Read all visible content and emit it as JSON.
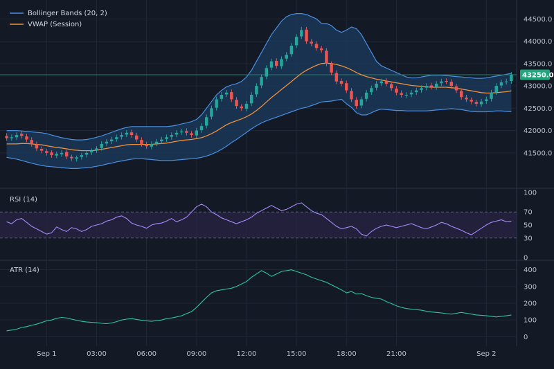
{
  "colors": {
    "background": "#131a26",
    "grid": "#1f2836",
    "separator": "#2c3646",
    "bull": "#26a69a",
    "bear": "#ef5350",
    "bollinger_line": "#4a90e2",
    "bollinger_fill": "#1b3b5e",
    "vwap": "#f0913a",
    "rsi": "#a78bfa",
    "rsi_band": "#2a2445",
    "rsi_guide": "#5b5f78",
    "atr": "#2ec4a0",
    "price_tag": "#1fa67a",
    "price_line": "#2a7f6a"
  },
  "chart_data": {
    "type": "candlestick",
    "x_ticks": [
      {
        "label": "Sep 1",
        "index": 8
      },
      {
        "label": "03:00",
        "index": 18
      },
      {
        "label": "06:00",
        "index": 28
      },
      {
        "label": "09:00",
        "index": 38
      },
      {
        "label": "12:00",
        "index": 48
      },
      {
        "label": "15:00",
        "index": 58
      },
      {
        "label": "18:00",
        "index": 68
      },
      {
        "label": "21:00",
        "index": 78
      },
      {
        "label": "Sep 2",
        "index": 96
      }
    ],
    "price_pane": {
      "ylim": [
        40800,
        44800
      ],
      "y_ticks": [
        41500,
        42000,
        42500,
        43000,
        43500,
        44000,
        44500
      ],
      "tick_labels": [
        "41500.0",
        "42000.0",
        "42500.0",
        "43000.0",
        "43500.0",
        "44000.0",
        "44500.0"
      ],
      "legend": [
        {
          "name": "Bollinger Bands (20, 2)",
          "color_key": "bollinger_line"
        },
        {
          "name": "VWAP (Session)",
          "color_key": "vwap"
        }
      ],
      "last_price": 43250,
      "last_price_label": "43250.0",
      "close": [
        41830,
        41850,
        41900,
        41880,
        41800,
        41700,
        41600,
        41550,
        41500,
        41450,
        41480,
        41500,
        41420,
        41380,
        41400,
        41450,
        41500,
        41550,
        41600,
        41700,
        41750,
        41800,
        41850,
        41900,
        41950,
        41900,
        41800,
        41700,
        41650,
        41700,
        41750,
        41800,
        41850,
        41900,
        41950,
        41980,
        41950,
        41900,
        42000,
        42100,
        42300,
        42500,
        42700,
        42800,
        42850,
        42700,
        42550,
        42500,
        42600,
        42800,
        43000,
        43200,
        43400,
        43550,
        43450,
        43600,
        43700,
        43900,
        44100,
        44250,
        44000,
        43950,
        43850,
        43800,
        43500,
        43300,
        43100,
        43050,
        42900,
        42700,
        42550,
        42700,
        42850,
        42950,
        43050,
        43100,
        43050,
        42950,
        42850,
        42800,
        42800,
        42850,
        42900,
        42950,
        43000,
        42980,
        43050,
        43100,
        43100,
        43000,
        42900,
        42750,
        42700,
        42650,
        42600,
        42650,
        42700,
        42850,
        43000,
        43080,
        43100,
        43250
      ],
      "open": [
        41880,
        41830,
        41850,
        41930,
        41870,
        41790,
        41690,
        41590,
        41540,
        41510,
        41440,
        41470,
        41520,
        41410,
        41370,
        41410,
        41460,
        41510,
        41560,
        41610,
        41710,
        41760,
        41810,
        41860,
        41910,
        41960,
        41890,
        41790,
        41690,
        41640,
        41710,
        41760,
        41810,
        41860,
        41910,
        41960,
        41990,
        41940,
        41890,
        42010,
        42110,
        42310,
        42510,
        42710,
        42810,
        42860,
        42690,
        42540,
        42490,
        42610,
        42810,
        43010,
        43210,
        43410,
        43560,
        43440,
        43610,
        43710,
        43910,
        44110,
        44260,
        43990,
        43940,
        43840,
        43790,
        43490,
        43290,
        43110,
        43060,
        42890,
        42690,
        42560,
        42710,
        42860,
        42960,
        43060,
        43110,
        43040,
        42940,
        42840,
        42790,
        42810,
        42860,
        42910,
        42960,
        43010,
        42970,
        43060,
        43110,
        43090,
        42990,
        42890,
        42740,
        42690,
        42640,
        42590,
        42660,
        42710,
        42860,
        43010,
        43090,
        43110
      ],
      "high": [
        41940,
        41910,
        41960,
        41990,
        41930,
        41850,
        41750,
        41640,
        41590,
        41560,
        41530,
        41560,
        41570,
        41460,
        41440,
        41500,
        41550,
        41600,
        41650,
        41760,
        41810,
        41860,
        41910,
        41960,
        42010,
        42020,
        41950,
        41850,
        41750,
        41760,
        41810,
        41860,
        41910,
        41960,
        42010,
        42040,
        42050,
        41990,
        42060,
        42160,
        42360,
        42560,
        42760,
        42860,
        42910,
        42920,
        42750,
        42590,
        42660,
        42860,
        43060,
        43260,
        43460,
        43610,
        43620,
        43660,
        43760,
        43960,
        44160,
        44320,
        44320,
        44050,
        44000,
        43900,
        43850,
        43550,
        43350,
        43170,
        43120,
        42950,
        42750,
        42760,
        42910,
        43010,
        43110,
        43160,
        43170,
        43100,
        43000,
        42900,
        42860,
        42910,
        42960,
        43010,
        43060,
        43070,
        43110,
        43160,
        43170,
        43150,
        43050,
        42950,
        42800,
        42740,
        42690,
        42710,
        42760,
        42910,
        43060,
        43140,
        43160,
        43310
      ],
      "low": [
        41770,
        41770,
        41790,
        41820,
        41740,
        41640,
        41540,
        41490,
        41440,
        41390,
        41380,
        41410,
        41360,
        41320,
        41310,
        41350,
        41400,
        41450,
        41500,
        41550,
        41650,
        41700,
        41750,
        41800,
        41850,
        41840,
        41740,
        41640,
        41590,
        41580,
        41650,
        41700,
        41750,
        41800,
        41850,
        41900,
        41890,
        41840,
        41830,
        41950,
        42050,
        42250,
        42450,
        42650,
        42750,
        42640,
        42490,
        42440,
        42430,
        42550,
        42750,
        42950,
        43150,
        43350,
        43390,
        43380,
        43550,
        43650,
        43850,
        44050,
        43940,
        43890,
        43790,
        43740,
        43440,
        43240,
        43040,
        42990,
        42840,
        42640,
        42490,
        42500,
        42650,
        42800,
        42900,
        43000,
        42990,
        42890,
        42790,
        42740,
        42730,
        42750,
        42800,
        42850,
        42900,
        42920,
        42910,
        43000,
        43040,
        42940,
        42840,
        42690,
        42640,
        42590,
        42540,
        42530,
        42600,
        42650,
        42800,
        42950,
        43030,
        43050
      ],
      "vwap": [
        41700,
        41700,
        41700,
        41710,
        41710,
        41700,
        41690,
        41680,
        41660,
        41640,
        41620,
        41610,
        41590,
        41570,
        41560,
        41550,
        41550,
        41550,
        41560,
        41580,
        41600,
        41620,
        41640,
        41660,
        41680,
        41690,
        41690,
        41690,
        41690,
        41690,
        41700,
        41710,
        41720,
        41740,
        41760,
        41780,
        41790,
        41800,
        41820,
        41840,
        41880,
        41930,
        41990,
        42060,
        42130,
        42180,
        42220,
        42260,
        42310,
        42370,
        42450,
        42540,
        42640,
        42740,
        42830,
        42920,
        43010,
        43100,
        43190,
        43280,
        43350,
        43410,
        43460,
        43500,
        43510,
        43500,
        43480,
        43450,
        43410,
        43360,
        43300,
        43250,
        43210,
        43180,
        43150,
        43130,
        43110,
        43090,
        43070,
        43050,
        43030,
        43010,
        43000,
        42990,
        42980,
        42970,
        42970,
        42970,
        42970,
        42960,
        42950,
        42930,
        42910,
        42890,
        42870,
        42850,
        42840,
        42840,
        42850,
        42860,
        42870,
        42890
      ],
      "bb_upper": [
        42000,
        42000,
        42000,
        41990,
        41980,
        41970,
        41960,
        41950,
        41930,
        41900,
        41870,
        41840,
        41820,
        41800,
        41790,
        41790,
        41800,
        41820,
        41850,
        41880,
        41920,
        41960,
        42000,
        42040,
        42070,
        42090,
        42090,
        42090,
        42090,
        42090,
        42090,
        42090,
        42090,
        42100,
        42120,
        42150,
        42170,
        42200,
        42250,
        42350,
        42500,
        42650,
        42800,
        42900,
        42980,
        43020,
        43050,
        43100,
        43200,
        43350,
        43550,
        43750,
        43950,
        44150,
        44300,
        44450,
        44550,
        44600,
        44620,
        44620,
        44600,
        44550,
        44500,
        44400,
        44400,
        44350,
        44250,
        44200,
        44250,
        44320,
        44280,
        44150,
        43950,
        43750,
        43550,
        43450,
        43400,
        43350,
        43300,
        43250,
        43200,
        43180,
        43180,
        43200,
        43220,
        43240,
        43240,
        43240,
        43230,
        43220,
        43210,
        43200,
        43190,
        43180,
        43170,
        43170,
        43180,
        43200,
        43220,
        43240,
        43260,
        43280
      ],
      "bb_lower": [
        41400,
        41380,
        41360,
        41330,
        41300,
        41270,
        41240,
        41220,
        41200,
        41190,
        41180,
        41170,
        41160,
        41150,
        41150,
        41160,
        41170,
        41180,
        41200,
        41220,
        41250,
        41270,
        41300,
        41320,
        41340,
        41360,
        41370,
        41370,
        41360,
        41350,
        41340,
        41330,
        41330,
        41330,
        41340,
        41350,
        41360,
        41370,
        41380,
        41400,
        41430,
        41470,
        41520,
        41580,
        41650,
        41730,
        41800,
        41880,
        41960,
        42040,
        42110,
        42170,
        42220,
        42260,
        42300,
        42340,
        42380,
        42420,
        42460,
        42500,
        42520,
        42560,
        42600,
        42640,
        42650,
        42660,
        42680,
        42700,
        42600,
        42520,
        42400,
        42350,
        42350,
        42400,
        42450,
        42480,
        42470,
        42460,
        42450,
        42450,
        42440,
        42440,
        42440,
        42440,
        42440,
        42450,
        42460,
        42470,
        42480,
        42490,
        42480,
        42470,
        42450,
        42430,
        42420,
        42420,
        42420,
        42430,
        42440,
        42440,
        42430,
        42420
      ]
    },
    "rsi_pane": {
      "label": "RSI (14)",
      "ylim": [
        0,
        100
      ],
      "y_ticks": [
        0,
        30,
        50,
        70,
        100
      ],
      "tick_labels": [
        "0",
        "30",
        "50",
        "70",
        "100"
      ],
      "overbought": 70,
      "oversold": 30,
      "values": [
        55,
        52,
        58,
        60,
        54,
        48,
        44,
        40,
        36,
        38,
        47,
        43,
        40,
        46,
        44,
        40,
        43,
        48,
        50,
        52,
        56,
        58,
        62,
        64,
        60,
        53,
        50,
        48,
        45,
        50,
        52,
        53,
        56,
        60,
        55,
        58,
        62,
        70,
        78,
        82,
        78,
        70,
        66,
        61,
        58,
        55,
        52,
        55,
        58,
        62,
        68,
        72,
        76,
        80,
        76,
        72,
        74,
        78,
        82,
        84,
        78,
        72,
        68,
        66,
        60,
        54,
        48,
        44,
        46,
        48,
        44,
        36,
        33,
        40,
        45,
        48,
        50,
        48,
        46,
        48,
        50,
        52,
        49,
        46,
        44,
        47,
        50,
        54,
        52,
        48,
        45,
        42,
        38,
        35,
        40,
        45,
        50,
        54,
        56,
        58,
        55,
        56
      ]
    },
    "atr_pane": {
      "label": "ATR (14)",
      "ylim": [
        -40,
        440
      ],
      "y_ticks": [
        0,
        100,
        200,
        300,
        400
      ],
      "tick_labels": [
        "0",
        "100",
        "200",
        "300",
        "400"
      ],
      "values": [
        35,
        40,
        45,
        55,
        60,
        68,
        75,
        85,
        95,
        100,
        110,
        115,
        112,
        105,
        98,
        92,
        88,
        86,
        84,
        80,
        78,
        82,
        90,
        100,
        105,
        108,
        103,
        98,
        95,
        92,
        96,
        100,
        108,
        112,
        118,
        125,
        138,
        150,
        175,
        205,
        235,
        262,
        275,
        280,
        285,
        290,
        300,
        315,
        330,
        355,
        375,
        395,
        380,
        360,
        375,
        390,
        395,
        400,
        390,
        380,
        370,
        355,
        345,
        335,
        325,
        310,
        295,
        280,
        262,
        270,
        255,
        258,
        245,
        235,
        230,
        225,
        210,
        198,
        185,
        175,
        168,
        165,
        162,
        158,
        152,
        148,
        145,
        142,
        138,
        135,
        140,
        145,
        140,
        135,
        130,
        128,
        125,
        122,
        118,
        122,
        125,
        130
      ]
    }
  }
}
